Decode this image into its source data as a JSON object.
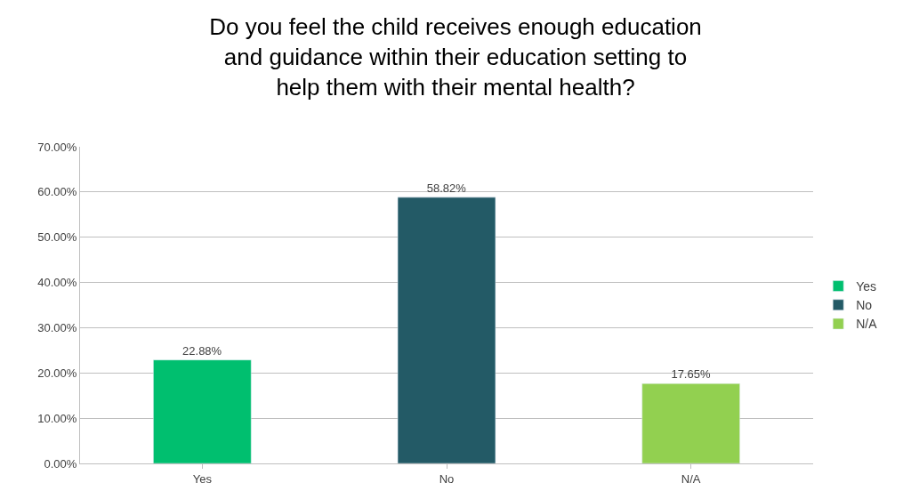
{
  "chart_data": {
    "type": "bar",
    "title": "Do you feel the child receives enough education and guidance within their education setting to help them with their mental health?",
    "categories": [
      "Yes",
      "No",
      "N/A"
    ],
    "series": [
      {
        "name": "Yes",
        "color": "#00bf6f",
        "values": [
          22.88,
          null,
          null
        ],
        "value_labels": [
          "22.88%",
          null,
          null
        ]
      },
      {
        "name": "No",
        "color": "#235a66",
        "values": [
          null,
          58.82,
          null
        ],
        "value_labels": [
          null,
          "58.82%",
          null
        ]
      },
      {
        "name": "N/A",
        "color": "#92d050",
        "values": [
          null,
          null,
          17.65
        ],
        "value_labels": [
          null,
          null,
          "17.65%"
        ]
      }
    ],
    "ylim": [
      0,
      70
    ],
    "yticks": [
      {
        "value": 0,
        "label": "0.00%"
      },
      {
        "value": 10,
        "label": "10.00%"
      },
      {
        "value": 20,
        "label": "20.00%"
      },
      {
        "value": 30,
        "label": "30.00%"
      },
      {
        "value": 40,
        "label": "40.00%"
      },
      {
        "value": 50,
        "label": "50.00%"
      },
      {
        "value": 60,
        "label": "60.00%"
      },
      {
        "value": 70,
        "label": "70.00%"
      }
    ],
    "grid": "y",
    "legend": "right"
  }
}
